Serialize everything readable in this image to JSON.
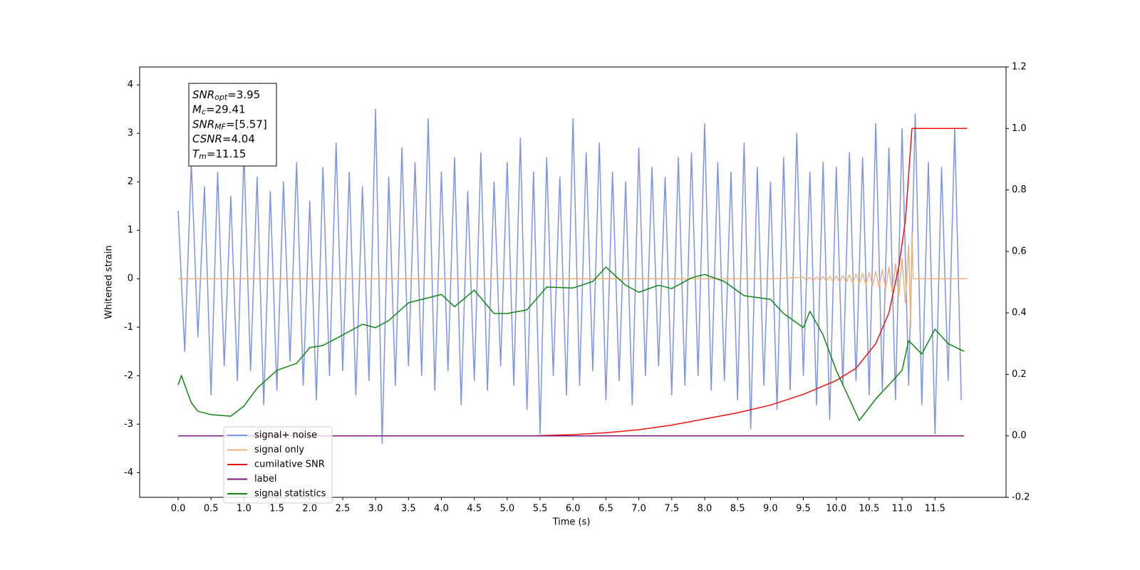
{
  "chart_data": {
    "type": "line",
    "xlabel": "Time (s)",
    "ylabel": "Whitened strain",
    "xlim": [
      -0.585,
      12.58
    ],
    "ylim": [
      -4.51,
      4.37
    ],
    "y2lim": [
      -0.2,
      1.2
    ],
    "xticks": [
      {
        "value": 0,
        "label": "0.0"
      },
      0.5,
      {
        "value": 1,
        "label": "1.0"
      },
      1.5,
      {
        "value": 2,
        "label": "2.0"
      },
      2.5,
      {
        "value": 3,
        "label": "3.0"
      },
      3.5,
      {
        "value": 4,
        "label": "4.0"
      },
      4.5,
      {
        "value": 5,
        "label": "5.0"
      },
      5.5,
      {
        "value": 6,
        "label": "6.0"
      },
      6.5,
      {
        "value": 7,
        "label": "7.0"
      },
      7.5,
      {
        "value": 8,
        "label": "8.0"
      },
      8.5,
      {
        "value": 9,
        "label": "9.0"
      },
      9.5,
      {
        "value": 10,
        "label": "10.0"
      },
      10.5,
      {
        "value": 11,
        "label": "11.0"
      },
      11.5
    ],
    "yticks": [
      -4,
      -3,
      -2,
      -1,
      0,
      1,
      2,
      3,
      4
    ],
    "y2ticks": [
      -0.2,
      {
        "value": 0,
        "label": "0.0"
      },
      0.2,
      0.4,
      0.6,
      0.8,
      {
        "value": 1,
        "label": "1.0"
      },
      1.2
    ],
    "annotation": [
      {
        "main": "SNR",
        "sub": "opt",
        "rest": "=3.95"
      },
      {
        "main": "M",
        "sub": "c",
        "rest": "=29.41"
      },
      {
        "main": "SNR",
        "sub": "MF",
        "rest": "=[5.57]"
      },
      {
        "main": "CSNR",
        "rest": "=4.04"
      },
      {
        "main": "T",
        "sub": "m",
        "rest": "=11.15"
      }
    ],
    "legend": "lower left",
    "series": [
      {
        "name": "signal+ noise",
        "color": "#7b93e8",
        "x": [
          0,
          0.1,
          0.2,
          0.3,
          0.4,
          0.5,
          0.6,
          0.7,
          0.8,
          0.9,
          1,
          1.1,
          1.2,
          1.3,
          1.4,
          1.5,
          1.6,
          1.7,
          1.8,
          1.9,
          2,
          2.1,
          2.2,
          2.3,
          2.4,
          2.5,
          2.6,
          2.7,
          2.8,
          2.9,
          3,
          3.1,
          3.2,
          3.3,
          3.4,
          3.5,
          3.6,
          3.7,
          3.8,
          3.9,
          4,
          4.1,
          4.2,
          4.3,
          4.4,
          4.5,
          4.6,
          4.7,
          4.8,
          4.9,
          5,
          5.1,
          5.2,
          5.3,
          5.4,
          5.5,
          5.6,
          5.7,
          5.8,
          5.9,
          6,
          6.1,
          6.2,
          6.3,
          6.4,
          6.5,
          6.6,
          6.7,
          6.8,
          6.9,
          7,
          7.1,
          7.2,
          7.3,
          7.4,
          7.5,
          7.6,
          7.7,
          7.8,
          7.9,
          8,
          8.1,
          8.2,
          8.3,
          8.4,
          8.5,
          8.6,
          8.7,
          8.8,
          8.9,
          9,
          9.1,
          9.2,
          9.3,
          9.4,
          9.5,
          9.6,
          9.7,
          9.8,
          9.9,
          10,
          10.1,
          10.2,
          10.3,
          10.4,
          10.5,
          10.6,
          10.7,
          10.8,
          10.9,
          11,
          11.1,
          11.2,
          11.3,
          11.4,
          11.5,
          11.6,
          11.7,
          11.8,
          11.9
        ],
        "values": [
          1.4,
          -1.5,
          2.4,
          -1.2,
          1.9,
          -2.4,
          2.2,
          -1.8,
          1.7,
          -2.1,
          2.6,
          -1.9,
          2.1,
          -2.6,
          1.8,
          -2.3,
          2.0,
          -1.7,
          2.4,
          -2.2,
          1.6,
          -2.5,
          2.3,
          -2.0,
          2.8,
          -1.9,
          2.2,
          -2.4,
          1.9,
          -2.1,
          3.5,
          -3.4,
          2.1,
          -2.2,
          2.7,
          -1.8,
          2.4,
          -2.0,
          3.3,
          -2.3,
          2.2,
          -1.9,
          2.5,
          -2.6,
          1.8,
          -2.1,
          2.6,
          -2.3,
          2.0,
          -1.8,
          2.4,
          -2.2,
          2.9,
          -2.7,
          2.2,
          -3.2,
          2.5,
          -2.0,
          2.1,
          -2.4,
          3.3,
          -2.2,
          2.6,
          -1.9,
          2.8,
          -2.5,
          2.2,
          -2.1,
          2.0,
          -2.6,
          2.7,
          -2.0,
          2.3,
          -1.8,
          2.1,
          -2.4,
          2.5,
          -2.2,
          2.6,
          -2.0,
          3.2,
          -2.3,
          2.4,
          -2.1,
          2.2,
          -2.5,
          2.8,
          -3.1,
          2.3,
          -2.2,
          2.0,
          -2.7,
          2.5,
          -2.3,
          3.0,
          -2.0,
          2.2,
          -2.6,
          2.4,
          -2.9,
          2.3,
          -2.2,
          2.6,
          -2.1,
          2.5,
          -2.4,
          3.2,
          -2.3,
          2.7,
          -2.5,
          3.1,
          -2.2,
          3.4,
          -2.6,
          2.4,
          -3.2,
          2.3,
          -2.1,
          3.1,
          -2.5
        ]
      },
      {
        "name": "signal only",
        "color": "#f0b27a",
        "x": [
          0,
          9,
          9.5,
          9.55,
          9.6,
          9.65,
          9.7,
          9.75,
          9.8,
          9.85,
          9.9,
          9.95,
          10,
          10.05,
          10.1,
          10.15,
          10.2,
          10.25,
          10.3,
          10.35,
          10.4,
          10.45,
          10.5,
          10.55,
          10.6,
          10.65,
          10.7,
          10.75,
          10.8,
          10.85,
          10.9,
          10.95,
          11,
          11.05,
          11.1,
          11.13,
          11.15,
          11.17,
          11.99
        ],
        "values": [
          0,
          0,
          0.03,
          -0.03,
          0.03,
          -0.04,
          0.04,
          -0.04,
          0.05,
          -0.05,
          0.05,
          -0.06,
          0.06,
          -0.07,
          0.07,
          -0.08,
          0.08,
          -0.09,
          0.1,
          -0.1,
          0.11,
          -0.12,
          0.13,
          -0.14,
          0.15,
          -0.17,
          0.19,
          -0.21,
          0.24,
          -0.27,
          0.31,
          -0.36,
          0.42,
          -0.5,
          0.7,
          -1.0,
          0.95,
          0,
          0
        ]
      },
      {
        "name": "cumilative SNR",
        "color": "#ee1111",
        "axis": "y2",
        "x": [
          0,
          5.4,
          6,
          6.5,
          7,
          7.5,
          8,
          8.5,
          9,
          9.5,
          10,
          10.3,
          10.6,
          10.8,
          10.95,
          11.05,
          11.1,
          11.15,
          11.99
        ],
        "values": [
          0,
          0,
          0.004,
          0.01,
          0.02,
          0.035,
          0.055,
          0.075,
          0.1,
          0.135,
          0.18,
          0.22,
          0.3,
          0.4,
          0.55,
          0.7,
          0.85,
          1.0,
          1.0
        ]
      },
      {
        "name": "label",
        "color": "#7b1a7b",
        "axis": "y2",
        "x": [
          0,
          11.94
        ],
        "values": [
          0,
          0
        ]
      },
      {
        "name": "signal statistics",
        "color": "#118811",
        "axis": "y2",
        "x": [
          0,
          0.05,
          0.1,
          0.2,
          0.3,
          0.5,
          0.8,
          1,
          1.2,
          1.5,
          1.8,
          2,
          2.2,
          2.5,
          2.8,
          3,
          3.2,
          3.5,
          3.8,
          4,
          4.2,
          4.5,
          4.8,
          5,
          5.3,
          5.6,
          6,
          6.3,
          6.5,
          6.8,
          7,
          7.3,
          7.5,
          7.8,
          8,
          8.3,
          8.6,
          9,
          9.2,
          9.5,
          9.6,
          9.8,
          10,
          10.2,
          10.35,
          10.6,
          10.8,
          11,
          11.1,
          11.3,
          11.5,
          11.7,
          11.94
        ],
        "values": [
          0.166,
          0.196,
          0.166,
          0.108,
          0.08,
          0.069,
          0.064,
          0.097,
          0.155,
          0.213,
          0.236,
          0.287,
          0.294,
          0.328,
          0.363,
          0.352,
          0.375,
          0.433,
          0.449,
          0.46,
          0.42,
          0.474,
          0.398,
          0.398,
          0.41,
          0.484,
          0.481,
          0.502,
          0.549,
          0.49,
          0.467,
          0.49,
          0.479,
          0.514,
          0.525,
          0.502,
          0.456,
          0.444,
          0.398,
          0.352,
          0.405,
          0.328,
          0.213,
          0.12,
          0.05,
          0.12,
          0.166,
          0.213,
          0.31,
          0.266,
          0.347,
          0.3,
          0.275
        ]
      }
    ]
  }
}
